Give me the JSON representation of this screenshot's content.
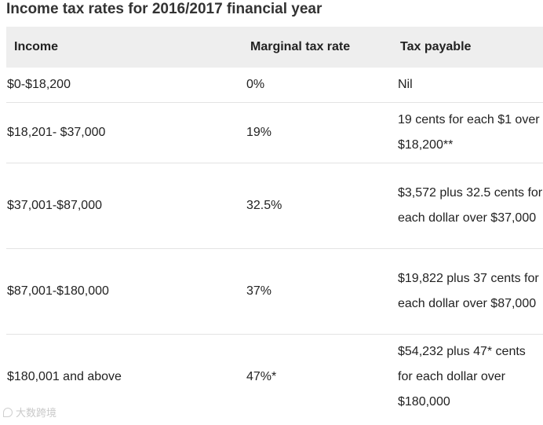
{
  "title": "Income tax rates for 2016/2017 financial year",
  "table": {
    "headers": [
      "Income",
      "Marginal tax rate",
      "Tax payable"
    ],
    "rows": [
      {
        "income": "$0-$18,200",
        "rate": "0%",
        "payable": "Nil"
      },
      {
        "income": "$18,201- $37,000",
        "rate": "19%",
        "payable": "19 cents for each $1 over $18,200**"
      },
      {
        "income": "$37,001-$87,000",
        "rate": "32.5%",
        "payable": "$3,572 plus 32.5 cents for each dollar over $37,000"
      },
      {
        "income": "$87,001-$180,000",
        "rate": "37%",
        "payable": "$19,822 plus 37 cents for each dollar over $87,000"
      },
      {
        "income": "$180,001 and above",
        "rate": "47%*",
        "payable": "$54,232 plus 47* cents for each dollar over $180,000"
      }
    ]
  },
  "watermark": {
    "text": "大数跨境",
    "icon": "watermark-logo-icon"
  }
}
